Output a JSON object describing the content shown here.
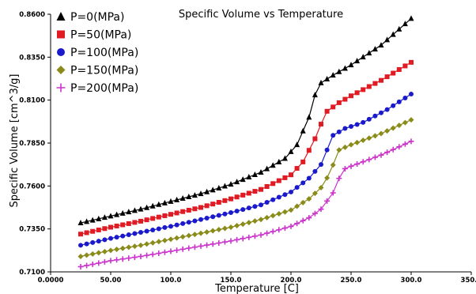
{
  "chart_data": {
    "type": "line",
    "title": "Specific Volume vs Temperature",
    "xlabel": "Temperature [C]",
    "ylabel": "Specific Volume [cm^3/g]",
    "xlim": [
      0,
      350
    ],
    "ylim": [
      0.71,
      0.86
    ],
    "x_ticks": [
      0,
      50,
      100,
      150,
      200,
      250,
      300,
      350
    ],
    "x_tick_labels": [
      "0.0000",
      "50.00",
      "100.0",
      "150.0",
      "200.0",
      "250.0",
      "300.0",
      "350.0"
    ],
    "y_ticks": [
      0.71,
      0.735,
      0.76,
      0.785,
      0.81,
      0.835,
      0.86
    ],
    "y_tick_labels": [
      "0.7100",
      "0.7350",
      "0.7600",
      "0.7850",
      "0.8100",
      "0.8350",
      "0.8600"
    ],
    "grid": false,
    "legend_position": "top-left",
    "series": [
      {
        "name": "P=0(MPa)",
        "color": "#000000",
        "marker": "triangle",
        "points": [
          [
            25,
            0.7385
          ],
          [
            50,
            0.7425
          ],
          [
            75,
            0.7465
          ],
          [
            100,
            0.751
          ],
          [
            125,
            0.7555
          ],
          [
            150,
            0.761
          ],
          [
            175,
            0.768
          ],
          [
            195,
            0.776
          ],
          [
            205,
            0.784
          ],
          [
            215,
            0.8
          ],
          [
            220,
            0.813
          ],
          [
            225,
            0.82
          ],
          [
            235,
            0.8245
          ],
          [
            250,
            0.8305
          ],
          [
            275,
            0.842
          ],
          [
            300,
            0.8575
          ]
        ]
      },
      {
        "name": "P=50(MPa)",
        "color": "#e01b24",
        "marker": "square",
        "points": [
          [
            25,
            0.732
          ],
          [
            50,
            0.736
          ],
          [
            75,
            0.7395
          ],
          [
            100,
            0.7435
          ],
          [
            125,
            0.7475
          ],
          [
            150,
            0.7525
          ],
          [
            175,
            0.758
          ],
          [
            200,
            0.7665
          ],
          [
            210,
            0.774
          ],
          [
            220,
            0.7875
          ],
          [
            225,
            0.796
          ],
          [
            230,
            0.8035
          ],
          [
            240,
            0.8085
          ],
          [
            250,
            0.8125
          ],
          [
            275,
            0.8215
          ],
          [
            300,
            0.832
          ]
        ]
      },
      {
        "name": "P=100(MPa)",
        "color": "#1a1acc",
        "marker": "circle",
        "points": [
          [
            25,
            0.7255
          ],
          [
            50,
            0.7295
          ],
          [
            75,
            0.733
          ],
          [
            100,
            0.7365
          ],
          [
            125,
            0.7405
          ],
          [
            150,
            0.7445
          ],
          [
            175,
            0.749
          ],
          [
            200,
            0.7565
          ],
          [
            215,
            0.7645
          ],
          [
            225,
            0.7725
          ],
          [
            230,
            0.781
          ],
          [
            235,
            0.7895
          ],
          [
            245,
            0.7935
          ],
          [
            260,
            0.797
          ],
          [
            280,
            0.8045
          ],
          [
            300,
            0.8135
          ]
        ]
      },
      {
        "name": "P=150(MPa)",
        "color": "#8b8b1a",
        "marker": "diamond",
        "points": [
          [
            25,
            0.719
          ],
          [
            50,
            0.7225
          ],
          [
            75,
            0.7255
          ],
          [
            100,
            0.729
          ],
          [
            125,
            0.7325
          ],
          [
            150,
            0.736
          ],
          [
            175,
            0.7405
          ],
          [
            200,
            0.746
          ],
          [
            215,
            0.7525
          ],
          [
            225,
            0.759
          ],
          [
            232,
            0.767
          ],
          [
            240,
            0.781
          ],
          [
            250,
            0.784
          ],
          [
            275,
            0.7905
          ],
          [
            300,
            0.7985
          ]
        ]
      },
      {
        "name": "P=200(MPa)",
        "color": "#cc33cc",
        "marker": "plus",
        "points": [
          [
            25,
            0.713
          ],
          [
            50,
            0.7165
          ],
          [
            75,
            0.719
          ],
          [
            100,
            0.722
          ],
          [
            125,
            0.725
          ],
          [
            150,
            0.728
          ],
          [
            175,
            0.7315
          ],
          [
            200,
            0.7365
          ],
          [
            215,
            0.7415
          ],
          [
            225,
            0.7465
          ],
          [
            235,
            0.756
          ],
          [
            243,
            0.7695
          ],
          [
            250,
            0.7715
          ],
          [
            275,
            0.778
          ],
          [
            300,
            0.786
          ]
        ]
      }
    ]
  }
}
